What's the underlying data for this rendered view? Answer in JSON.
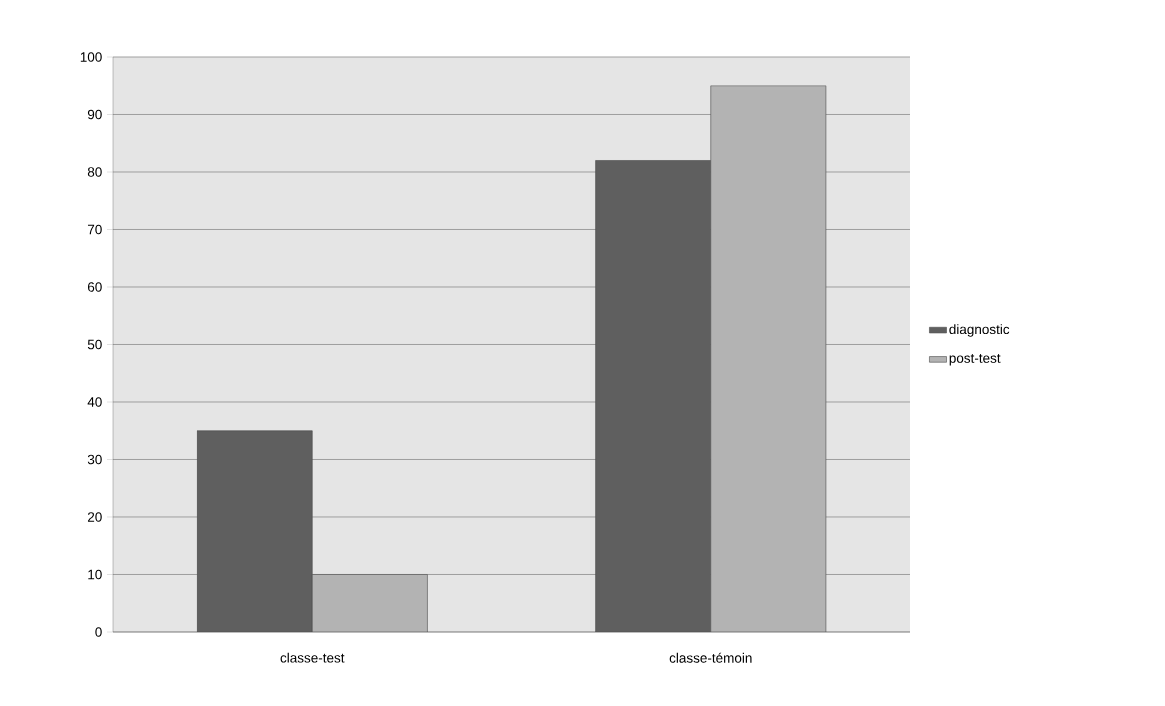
{
  "chart_data": {
    "type": "bar",
    "categories": [
      "classe-test",
      "classe-témoin"
    ],
    "series": [
      {
        "name": "diagnostic",
        "color": "#5f5f5f",
        "values": [
          35,
          82
        ]
      },
      {
        "name": "post-test",
        "color": "#b3b3b3",
        "values": [
          10,
          95
        ]
      }
    ],
    "ylim": [
      0,
      100
    ],
    "yticks": [
      0,
      10,
      20,
      30,
      40,
      50,
      60,
      70,
      80,
      90,
      100
    ],
    "grid": "y",
    "legend": "right"
  }
}
